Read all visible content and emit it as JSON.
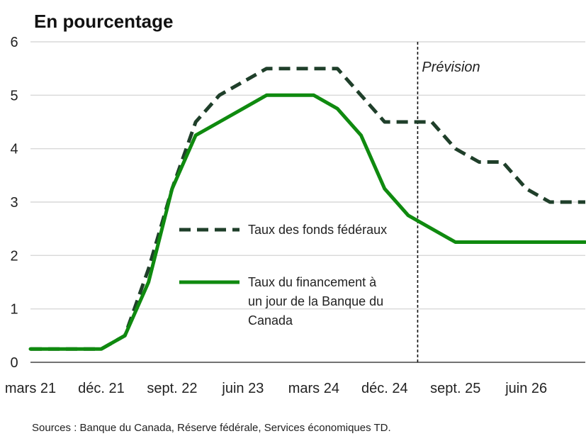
{
  "chart_data": {
    "type": "line",
    "title": "En pourcentage",
    "ylim": [
      0,
      6
    ],
    "yticks": [
      0,
      1,
      2,
      3,
      4,
      5,
      6
    ],
    "xlim": [
      0,
      23.5
    ],
    "x_ticks": [
      {
        "label": "mars 21",
        "x": 0
      },
      {
        "label": "déc. 21",
        "x": 3
      },
      {
        "label": "sept. 22",
        "x": 6
      },
      {
        "label": "juin 23",
        "x": 9
      },
      {
        "label": "mars 24",
        "x": 12
      },
      {
        "label": "déc. 24",
        "x": 15
      },
      {
        "label": "sept. 25",
        "x": 18
      },
      {
        "label": "juin 26",
        "x": 21
      }
    ],
    "grid": true,
    "forecast_start_x": 16.4,
    "forecast_label": "Prévision",
    "series": [
      {
        "name": "Taux des fonds fédéraux",
        "style": "dashed",
        "color": "#1f3f2a",
        "points": [
          [
            0,
            0.25
          ],
          [
            3,
            0.25
          ],
          [
            4,
            0.5
          ],
          [
            5,
            1.75
          ],
          [
            6,
            3.25
          ],
          [
            7,
            4.5
          ],
          [
            8,
            5.0
          ],
          [
            9,
            5.25
          ],
          [
            10,
            5.5
          ],
          [
            11,
            5.5
          ],
          [
            12,
            5.5
          ],
          [
            13,
            5.5
          ],
          [
            14,
            5.0
          ],
          [
            15,
            4.5
          ],
          [
            16,
            4.5
          ],
          [
            17,
            4.5
          ],
          [
            18,
            4.0
          ],
          [
            19,
            3.75
          ],
          [
            20,
            3.75
          ],
          [
            21,
            3.25
          ],
          [
            22,
            3.0
          ],
          [
            23.5,
            3.0
          ]
        ]
      },
      {
        "name": "Taux du financement à un jour de la Banque du Canada",
        "legend_lines": [
          "Taux du financement à",
          "un jour de la Banque du",
          "Canada"
        ],
        "style": "solid",
        "color": "#0f8a0f",
        "points": [
          [
            0,
            0.25
          ],
          [
            3,
            0.25
          ],
          [
            4,
            0.5
          ],
          [
            5,
            1.5
          ],
          [
            6,
            3.25
          ],
          [
            7,
            4.25
          ],
          [
            8,
            4.5
          ],
          [
            9,
            4.75
          ],
          [
            10,
            5.0
          ],
          [
            11,
            5.0
          ],
          [
            12,
            5.0
          ],
          [
            13,
            4.75
          ],
          [
            14,
            4.25
          ],
          [
            15,
            3.25
          ],
          [
            16,
            2.75
          ],
          [
            17,
            2.5
          ],
          [
            18,
            2.25
          ],
          [
            19,
            2.25
          ],
          [
            20,
            2.25
          ],
          [
            21,
            2.25
          ],
          [
            22,
            2.25
          ],
          [
            23.5,
            2.25
          ]
        ]
      }
    ]
  },
  "sources": "Sources : Banque du Canada, Réserve fédérale, Services économiques TD."
}
